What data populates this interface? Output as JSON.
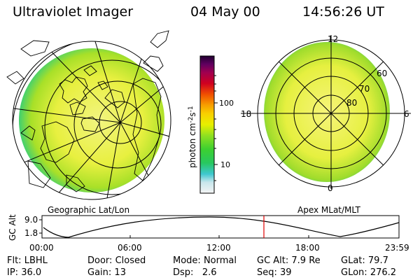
{
  "header": {
    "instrument": "Ultraviolet Imager",
    "date": "04 May 00",
    "time": "14:56:26 UT"
  },
  "colorbar": {
    "unit_label": "photon cm",
    "unit_sup1": "-2",
    "unit_mid": "s",
    "unit_sup2": "-1",
    "ticks": [
      "100",
      "10"
    ],
    "colors": [
      "#f4f4f4",
      "#c8e6ec",
      "#3ec8d0",
      "#28c860",
      "#3cd030",
      "#90e020",
      "#e8f000",
      "#f8d000",
      "#f8a000",
      "#f05000",
      "#d00020",
      "#a00050",
      "#600060",
      "#200030"
    ]
  },
  "geo_panel": {
    "caption": "Geographic Lat/Lon"
  },
  "apex_panel": {
    "caption": "Apex MLat/MLT",
    "mlt_labels": {
      "top": "12",
      "left": "18",
      "right": "6",
      "bottom": "0"
    },
    "lat_labels": [
      "60",
      "70",
      "80"
    ]
  },
  "altitude_plot": {
    "ylabel": "GC Alt",
    "yticks": [
      "9.0",
      "1.8"
    ],
    "xticks": [
      "00:00",
      "06:00",
      "12:00",
      "18:00",
      "23:59"
    ],
    "marker_color": "#e00000"
  },
  "info_rows": [
    [
      {
        "label": "Flt:",
        "value": "LBHL"
      },
      {
        "label": "Door:",
        "value": "Closed"
      },
      {
        "label": "Mode:",
        "value": "Normal"
      },
      {
        "label": "GC Alt:",
        "value": "7.9 Re"
      },
      {
        "label": "GLat:",
        "value": "79.7"
      }
    ],
    [
      {
        "label": "IP:",
        "value": "36.0"
      },
      {
        "label": "Gain:",
        "value": "13"
      },
      {
        "label": "Dsp:",
        "value": "2.6"
      },
      {
        "label": "Seq:",
        "value": "39"
      },
      {
        "label": "GLon:",
        "value": "276.2"
      }
    ]
  ],
  "colors": {
    "image_fill": "#e0ee30",
    "image_edge": "#48d860",
    "grid": "#000000"
  }
}
